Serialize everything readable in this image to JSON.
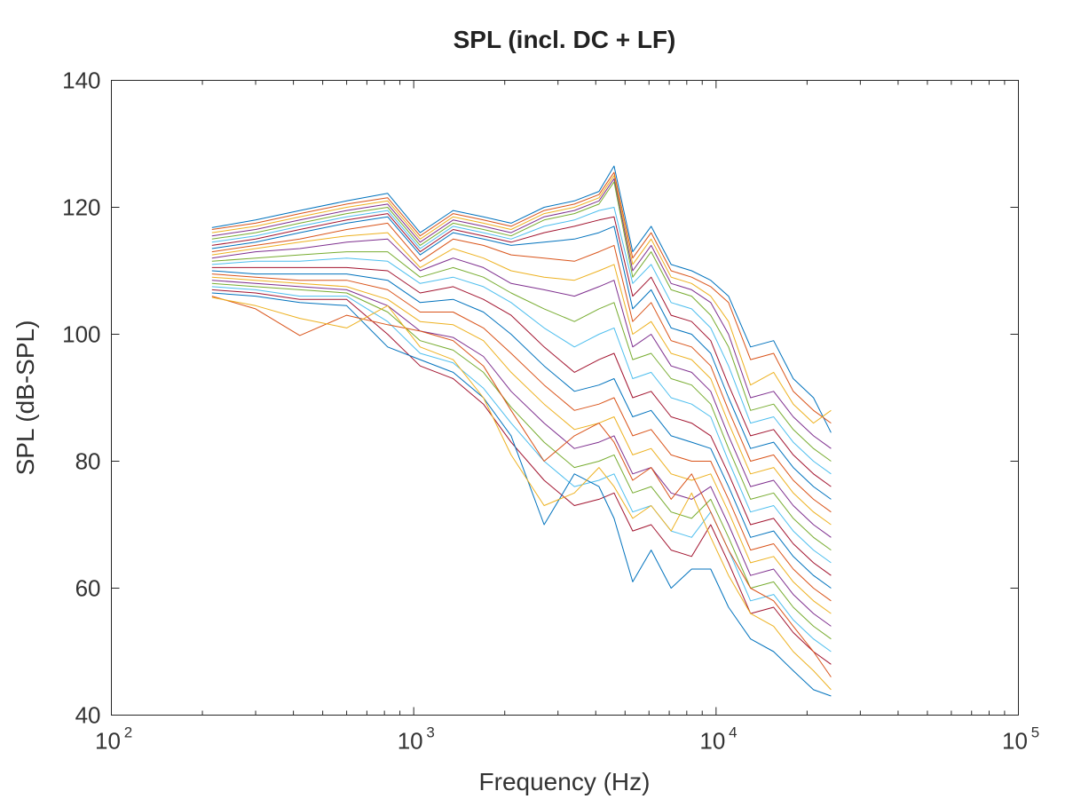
{
  "chart_data": {
    "type": "line",
    "title": "SPL (incl. DC + LF)",
    "xlabel": "Frequency (Hz)",
    "ylabel": "SPL (dB-SPL)",
    "xscale": "log",
    "xlim": [
      100,
      100000
    ],
    "ylim": [
      40,
      140
    ],
    "x_ticks": [
      {
        "base": "10",
        "exp": "2",
        "value": 100
      },
      {
        "base": "10",
        "exp": "3",
        "value": 1000
      },
      {
        "base": "10",
        "exp": "4",
        "value": 10000
      },
      {
        "base": "10",
        "exp": "5",
        "value": 100000
      }
    ],
    "y_ticks": [
      "40",
      "60",
      "80",
      "100",
      "120",
      "140"
    ],
    "grid": false,
    "legend": "none",
    "series_colors": [
      "#0072bd",
      "#d95319",
      "#edb120",
      "#7e2f8e",
      "#77ac30",
      "#4dbeee",
      "#a2142f"
    ],
    "x": [
      215,
      300,
      420,
      600,
      820,
      1050,
      1350,
      1700,
      2100,
      2700,
      3400,
      4100,
      4600,
      5300,
      6100,
      7100,
      8300,
      9600,
      11000,
      13000,
      15500,
      18000,
      21000,
      24000
    ],
    "series": [
      {
        "values": [
          116.8,
          118,
          119.5,
          121,
          122.2,
          116,
          119.5,
          118.5,
          117.5,
          120,
          121,
          122.5,
          126.5,
          113,
          117,
          111,
          110,
          108.5,
          106,
          98,
          99,
          93,
          90,
          84.5
        ]
      },
      {
        "values": [
          116.5,
          117.5,
          119,
          120.5,
          121.5,
          115.5,
          119,
          118,
          117,
          119.5,
          120.5,
          122,
          125.5,
          112,
          116,
          110,
          109,
          107.5,
          105,
          96,
          97,
          91,
          88,
          86
        ]
      },
      {
        "values": [
          116,
          117,
          118.5,
          120,
          121,
          115,
          118.5,
          117.5,
          116.5,
          119,
          120,
          121.5,
          125,
          111,
          115,
          109,
          108,
          106,
          102,
          92,
          94,
          89,
          86,
          88
        ]
      },
      {
        "values": [
          115.5,
          116.5,
          118,
          119.5,
          120.5,
          114.5,
          118,
          117,
          116,
          118.5,
          119.5,
          121,
          124.5,
          110,
          114,
          108,
          107,
          105,
          100,
          90,
          91,
          87,
          84,
          82
        ]
      },
      {
        "values": [
          115,
          116,
          117.5,
          119,
          120,
          114,
          117.5,
          116.5,
          115.5,
          118,
          119,
          120.5,
          124,
          109,
          113,
          107,
          106,
          103,
          98,
          88,
          89,
          85,
          82,
          80
        ]
      },
      {
        "values": [
          114.5,
          115.5,
          117,
          118.5,
          119.5,
          113.5,
          117,
          116,
          115,
          117,
          118,
          119.5,
          120,
          108,
          111,
          105,
          104,
          101,
          95,
          86,
          87,
          83,
          80,
          78
        ]
      },
      {
        "values": [
          114,
          115,
          116.5,
          118,
          119,
          113,
          116.5,
          115.5,
          114.5,
          116,
          117,
          118,
          118.5,
          106,
          109,
          103,
          102,
          99,
          92,
          84,
          85,
          81,
          78,
          76
        ]
      },
      {
        "values": [
          113.5,
          114.5,
          116,
          117.5,
          118.5,
          112.5,
          116,
          115,
          114,
          114.5,
          115,
          116,
          117,
          104,
          107,
          101,
          100,
          97,
          90,
          82,
          83,
          79,
          76,
          74
        ]
      },
      {
        "values": [
          113,
          114,
          115,
          116.5,
          117.5,
          111.5,
          115,
          114,
          112.5,
          112,
          111.5,
          113,
          114,
          102,
          105,
          99,
          98,
          95,
          88,
          80,
          81,
          77,
          74,
          72
        ]
      },
      {
        "values": [
          112.5,
          113.5,
          114.5,
          115.5,
          116,
          110.5,
          113.5,
          112,
          110,
          109,
          108.5,
          110,
          111,
          100,
          102,
          97,
          96,
          93,
          86,
          78,
          79,
          75,
          72,
          70
        ]
      },
      {
        "values": [
          112,
          113,
          113.5,
          114.5,
          115,
          110,
          112,
          110.5,
          108,
          107,
          106,
          107.5,
          108.5,
          98,
          100,
          95,
          94,
          91,
          84,
          76,
          77,
          73,
          70,
          68
        ]
      },
      {
        "values": [
          111.5,
          112,
          112.5,
          113,
          113,
          109,
          110.5,
          109,
          106.5,
          104,
          102,
          104,
          105,
          96,
          97,
          93,
          92,
          89,
          82,
          74,
          75,
          71,
          68,
          66
        ]
      },
      {
        "values": [
          111,
          111.5,
          111.5,
          112,
          111.5,
          108,
          109,
          107.5,
          105,
          101,
          98,
          100,
          101,
          93,
          94,
          90,
          89,
          87,
          80,
          72,
          73,
          69,
          66,
          64
        ]
      },
      {
        "values": [
          110.5,
          110.5,
          110.5,
          110.5,
          110,
          106.5,
          107.5,
          105.5,
          103,
          98,
          94,
          96,
          97,
          90,
          91,
          87,
          86,
          84,
          78,
          70,
          71,
          67,
          64,
          62
        ]
      },
      {
        "values": [
          110,
          109.5,
          109.5,
          109.5,
          108.5,
          105,
          105.5,
          103.5,
          100,
          95,
          91,
          92,
          93,
          87,
          88,
          84,
          83,
          82,
          76,
          68,
          69,
          65,
          62,
          60
        ]
      },
      {
        "values": [
          109.5,
          109,
          108.5,
          108.5,
          107,
          103.5,
          103.5,
          101,
          97,
          92,
          88,
          89,
          90,
          84,
          85,
          81,
          80,
          80,
          74,
          66,
          67,
          63,
          60,
          58
        ]
      },
      {
        "values": [
          109,
          108.5,
          108,
          107.5,
          105.5,
          102,
          101.5,
          99,
          94,
          89,
          85,
          86,
          87,
          81,
          82,
          78,
          77,
          78,
          72,
          64,
          65,
          61,
          58,
          56
        ]
      },
      {
        "values": [
          108.5,
          108,
          107.5,
          107,
          104.5,
          100.5,
          99.5,
          96.5,
          91,
          86,
          82,
          83,
          84,
          78,
          79,
          75,
          74,
          76,
          70,
          62,
          63,
          59,
          56,
          54
        ]
      },
      {
        "values": [
          108,
          107.5,
          107,
          106.5,
          103.5,
          99,
          97.5,
          94,
          88.5,
          83,
          79,
          80,
          81,
          75,
          76,
          72,
          71,
          74,
          68,
          60,
          61,
          57,
          54,
          52
        ]
      },
      {
        "values": [
          107.5,
          107,
          106,
          106,
          102,
          97,
          95.5,
          91.5,
          86,
          80,
          76,
          77,
          78,
          72,
          73,
          69,
          68,
          72,
          66,
          58,
          59,
          55,
          52,
          50
        ]
      },
      {
        "values": [
          107,
          106.5,
          105.5,
          105.5,
          100,
          95,
          93,
          89,
          83,
          77,
          73,
          74,
          75,
          69,
          70,
          66,
          65,
          70,
          64,
          56,
          57,
          53,
          50,
          48
        ]
      },
      {
        "values": [
          106.5,
          106,
          105,
          104.5,
          98,
          96,
          94,
          90,
          84,
          70,
          78,
          76,
          71,
          61,
          66,
          60,
          63,
          63,
          57,
          52,
          50,
          47,
          44,
          43
        ]
      },
      {
        "values": [
          106,
          104,
          99.8,
          103,
          101.5,
          100.5,
          99,
          95,
          88,
          80,
          84,
          86,
          83,
          77,
          79,
          74,
          78,
          72,
          66,
          60,
          58,
          54,
          50,
          46
        ]
      },
      {
        "values": [
          105.8,
          104.5,
          102.5,
          101,
          104.5,
          98,
          96,
          90,
          81,
          73,
          75,
          79,
          76,
          71,
          73,
          69,
          75,
          68,
          62,
          56,
          54,
          50,
          47,
          44
        ]
      }
    ]
  }
}
